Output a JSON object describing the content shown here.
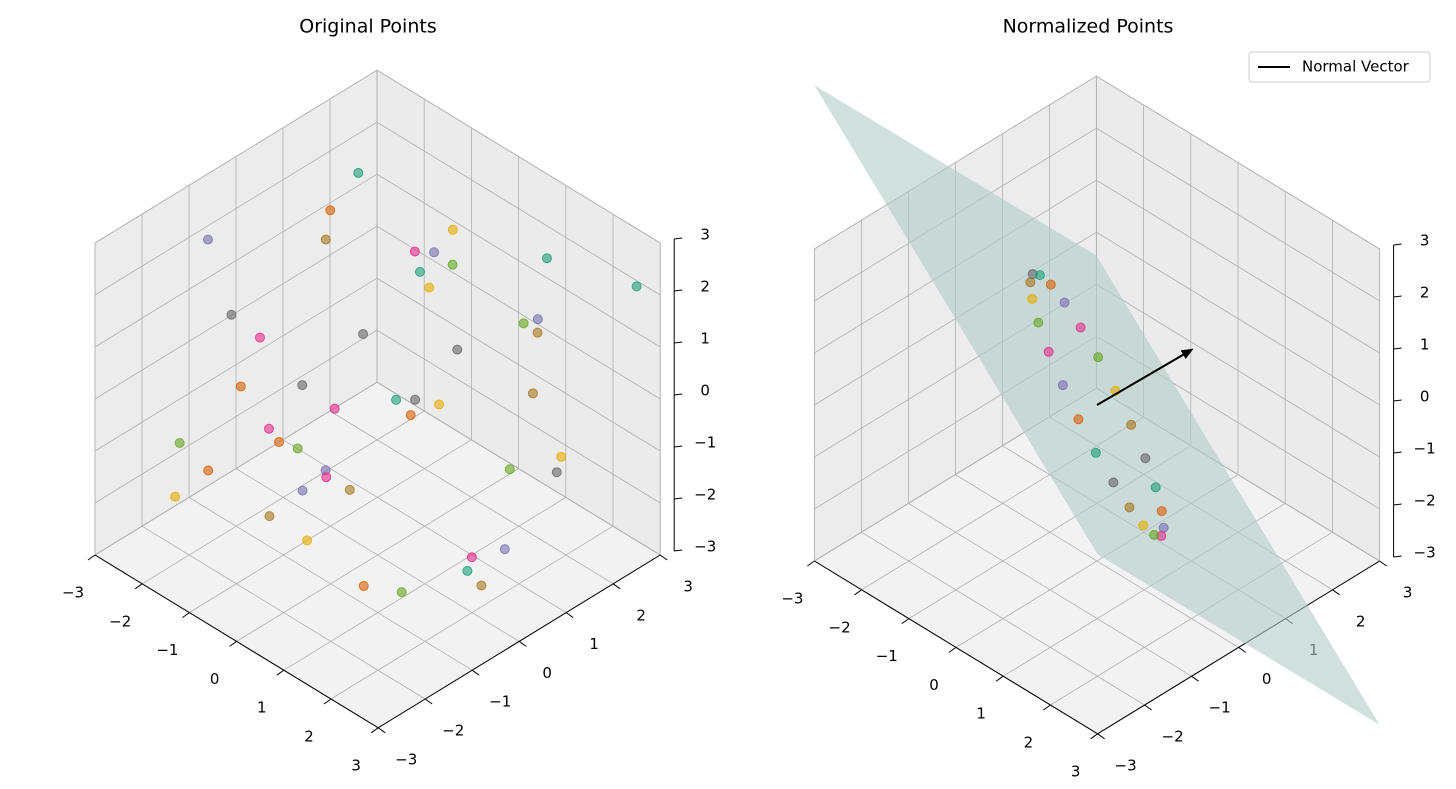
{
  "chart_data": [
    {
      "type": "scatter3d",
      "title": "Original Points",
      "xlim": [
        -3,
        3
      ],
      "ylim": [
        -3,
        3
      ],
      "zlim": [
        -3,
        3
      ],
      "xticks": [
        {
          "value": -3,
          "label": "−3"
        },
        {
          "value": -2,
          "label": "−2"
        },
        {
          "value": -1,
          "label": "−1"
        },
        0,
        1,
        2,
        3
      ],
      "yticks": [
        {
          "value": -3,
          "label": "−3"
        },
        {
          "value": -2,
          "label": "−2"
        },
        {
          "value": -1,
          "label": "−1"
        },
        0,
        1,
        2,
        3
      ],
      "zticks": [
        {
          "value": -3,
          "label": "−3"
        },
        {
          "value": -2,
          "label": "−2"
        },
        {
          "value": -1,
          "label": "−1"
        },
        0,
        1,
        2,
        3
      ],
      "grid": true,
      "palette": [
        "#1b9e77",
        "#d95f02",
        "#7570b3",
        "#e7298a",
        "#66a61e",
        "#e6ab02",
        "#a6761d",
        "#666666"
      ],
      "x": [
        -2.5,
        1.2,
        0.4,
        -1.8,
        2.7,
        -0.3,
        1.9,
        -2.2,
        0.8,
        -1.1,
        2.3,
        -2.8,
        0.1,
        1.6,
        -0.7,
        2.9,
        -1.5,
        0.6,
        -2.4,
        1.4,
        -0.9,
        2.1,
        -0.2,
        -2.0,
        2.6,
        0.9,
        -1.3,
        1.8,
        -2.6,
        0.3,
        1.1,
        -0.5,
        2.4,
        -1.7,
        0.7,
        -2.9,
        1.5,
        -0.1,
        2.0,
        -1.0,
        0.5,
        -2.3,
        1.7,
        -0.6,
        2.8,
        -1.9,
        1.0,
        -0.4
      ],
      "y": [
        2.1,
        -1.5,
        0.8,
        2.6,
        -2.2,
        1.4,
        0.3,
        -0.9,
        2.8,
        -2.5,
        1.1,
        0.5,
        -1.8,
        2.3,
        -0.4,
        0.9,
        1.9,
        -2.7,
        -1.2,
        0.6,
        2.5,
        -0.8,
        -2.1,
        1.7,
        2.9,
        -0.2,
        0.2,
        -2.9,
        -1.6,
        1.3,
        2.2,
        -1.1,
        -0.5,
        0.7,
        -2.3,
        2.0,
        1.6,
        -1.4,
        -2.6,
        2.7,
        0.4,
        -0.6,
        1.0,
        -1.9,
        0.0,
        -2.4,
        2.4,
        1.2
      ],
      "z": [
        1.8,
        -2.1,
        2.6,
        0.4,
        -1.0,
        1.2,
        -2.7,
        0.9,
        1.6,
        -0.6,
        2.2,
        -2.4,
        0.1,
        -1.5,
        2.9,
        -0.3,
        -1.9,
        1.0,
        2.4,
        -2.6,
        0.7,
        1.5,
        -1.2,
        -0.8,
        2.0,
        0.3,
        -2.2,
        1.1,
        -1.4,
        2.7,
        -0.5,
        0.6,
        -1.7,
        2.3,
        -0.1,
        -2.9,
        1.4,
        -2.0,
        0.8,
        -1.1,
        2.5,
        -0.7,
        -2.5,
        1.9,
        0.2,
        -1.6,
        0.5,
        -0.9
      ]
    },
    {
      "type": "scatter3d",
      "title": "Normalized Points",
      "xlim": [
        -3,
        3
      ],
      "ylim": [
        -3,
        3
      ],
      "zlim": [
        -3,
        3
      ],
      "xticks": [
        {
          "value": -3,
          "label": "−3"
        },
        {
          "value": -2,
          "label": "−2"
        },
        {
          "value": -1,
          "label": "−1"
        },
        0,
        1,
        2,
        3
      ],
      "yticks": [
        {
          "value": -3,
          "label": "−3"
        },
        {
          "value": -2,
          "label": "−2"
        },
        {
          "value": -1,
          "label": "−1"
        },
        0,
        1,
        2,
        3
      ],
      "zticks": [
        {
          "value": -3,
          "label": "−3"
        },
        {
          "value": -2,
          "label": "−2"
        },
        {
          "value": -1,
          "label": "−1"
        },
        0,
        1,
        2,
        3
      ],
      "grid": true,
      "legend": "upper right",
      "palette": [
        "#1b9e77",
        "#d95f02",
        "#7570b3",
        "#e7298a",
        "#66a61e",
        "#e6ab02",
        "#a6761d",
        "#666666"
      ],
      "x": [
        2.05,
        2.03,
        1.87,
        1.59,
        1.19,
        0.72,
        0.2,
        -0.34,
        -0.85,
        -1.31,
        -1.67,
        -1.93,
        -2.05,
        -2.03,
        -1.87,
        -1.59,
        -1.19,
        -0.72,
        -0.2,
        0.34,
        0.85,
        1.31,
        1.67,
        1.93
      ],
      "y": [
        -0.81,
        -0.66,
        -0.46,
        -0.23,
        0.02,
        0.26,
        0.49,
        0.69,
        0.83,
        0.92,
        0.95,
        0.91,
        0.81,
        0.66,
        0.46,
        0.23,
        -0.02,
        -0.26,
        -0.49,
        -0.69,
        -0.83,
        -0.92,
        -0.95,
        -0.91
      ],
      "z": [
        0,
        -0.55,
        -1.07,
        -1.51,
        -1.85,
        -2.06,
        -2.13,
        -2.06,
        -1.85,
        -1.51,
        -1.07,
        -0.55,
        0,
        0.55,
        1.07,
        1.51,
        1.85,
        2.06,
        2.13,
        2.06,
        1.85,
        1.51,
        1.07,
        0.55
      ],
      "vector": {
        "name": "Normal Vector",
        "color": "#000000",
        "values": [
          0.95,
          1.1,
          1.0
        ]
      },
      "plane_color": "#b0cbc8"
    }
  ]
}
